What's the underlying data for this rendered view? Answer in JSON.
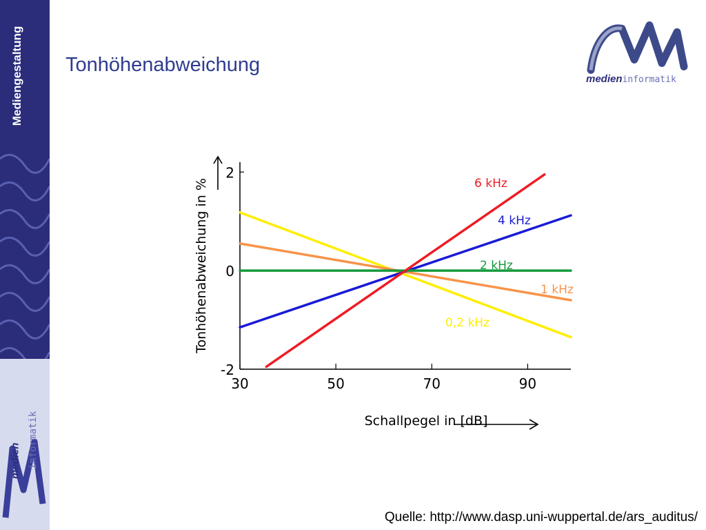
{
  "sidebar": {
    "label": "Mediengestaltung",
    "logo_text_a": "medien",
    "logo_text_b": "informatik",
    "logo_icon": "m-logo-icon"
  },
  "header": {
    "title": "Tonhöhenabweichung"
  },
  "logo": {
    "text_a": "medien",
    "text_b": "informatik",
    "icon": "m-logo-icon"
  },
  "footer": {
    "source": "Quelle: http://www.dasp.uni-wuppertal.de/ars_auditus/"
  },
  "colors": {
    "sidebar": "#2b2d7a",
    "title": "#2e3b8f"
  },
  "chart_data": {
    "type": "line",
    "title": "",
    "xlabel": "Schallpegel in [dB]",
    "ylabel": "Tonhöhenabweichung in %",
    "xlim": [
      30,
      99
    ],
    "ylim": [
      -2,
      2.2
    ],
    "xticks": [
      30,
      50,
      70,
      90
    ],
    "yticks": [
      -2,
      0,
      2
    ],
    "xtick_labels": [
      "30",
      "50",
      "70",
      "90"
    ],
    "ytick_labels": [
      "-2",
      "0",
      "2"
    ],
    "grid": false,
    "series": [
      {
        "name": "6 kHz",
        "color": "#ee1c24",
        "x": [
          35.5,
          93.5
        ],
        "y": [
          -1.95,
          1.95
        ]
      },
      {
        "name": "4 kHz",
        "color": "#1a1ad6",
        "x": [
          30,
          99
        ],
        "y": [
          -1.15,
          1.12
        ]
      },
      {
        "name": "2 kHz",
        "color": "#159a3c",
        "x": [
          30,
          99
        ],
        "y": [
          0,
          0
        ]
      },
      {
        "name": "1 kHz",
        "color": "#f7934a",
        "x": [
          30,
          99
        ],
        "y": [
          0.55,
          -0.6
        ]
      },
      {
        "name": "0,2 kHz",
        "color": "#ffee00",
        "x": [
          30,
          99
        ],
        "y": [
          1.18,
          -1.35
        ]
      }
    ]
  }
}
